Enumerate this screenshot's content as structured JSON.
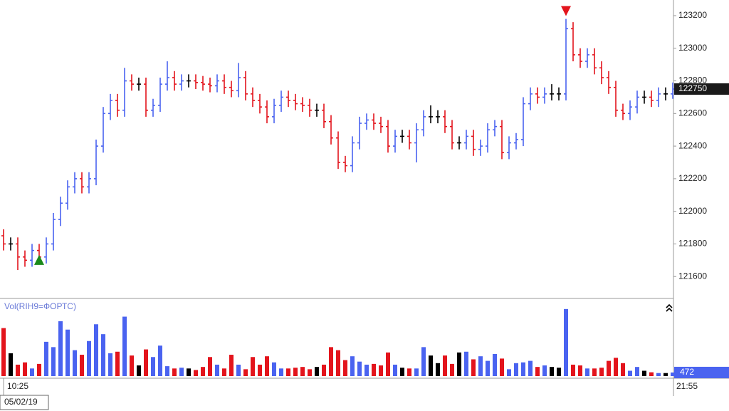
{
  "chart_data": {
    "type": "ohlc",
    "volume_title": "Vol(RIH9=ФОРТС)",
    "x_start": "10:25",
    "x_end": "21:55",
    "date": "05/02/19",
    "colors": {
      "up": "#4a63f0",
      "down": "#e3141c",
      "flat": "#000000",
      "buy": "#1a8a1a",
      "sell": "#e3141c"
    },
    "ylim": [
      121470,
      123296
    ],
    "yticks": [
      121600,
      121800,
      122000,
      122200,
      122400,
      122600,
      122800,
      123000,
      123200
    ],
    "volume_ylim": [
      0,
      10000
    ],
    "signals": [
      {
        "type": "buy",
        "index": 5
      },
      {
        "type": "sell",
        "index": 79
      }
    ],
    "open": [
      121850,
      121800,
      121800,
      121720,
      121700,
      121760,
      121720,
      121800,
      121950,
      122050,
      122150,
      122200,
      122150,
      122200,
      122400,
      122600,
      122680,
      122620,
      122800,
      122780,
      122780,
      122620,
      122650,
      122780,
      122820,
      122780,
      122800,
      122800,
      122790,
      122780,
      122770,
      122800,
      122760,
      122740,
      122820,
      122720,
      122680,
      122640,
      122580,
      122650,
      122700,
      122680,
      122660,
      122650,
      122620,
      122620,
      122550,
      122450,
      122300,
      122280,
      122420,
      122540,
      122560,
      122540,
      122520,
      122400,
      122460,
      122460,
      122420,
      122500,
      122580,
      122580,
      122580,
      122520,
      122420,
      122420,
      122460,
      122380,
      122400,
      122500,
      122520,
      122360,
      122420,
      122440,
      122660,
      122720,
      122700,
      122720,
      122720,
      122720,
      123120,
      122960,
      122920,
      122960,
      122880,
      122820,
      122760,
      122620,
      122600,
      122640,
      122700,
      122700,
      122680,
      122720,
      122720
    ],
    "high": [
      121890,
      121840,
      121840,
      121760,
      121800,
      121800,
      121840,
      121990,
      122090,
      122190,
      122240,
      122240,
      122240,
      122440,
      122640,
      122720,
      122720,
      122880,
      122840,
      122820,
      122820,
      122690,
      122820,
      122920,
      122860,
      122840,
      122840,
      122840,
      122830,
      122820,
      122840,
      122840,
      122800,
      122910,
      122860,
      122760,
      122720,
      122680,
      122690,
      122740,
      122740,
      122720,
      122700,
      122690,
      122660,
      122660,
      122590,
      122490,
      122340,
      122460,
      122580,
      122600,
      122600,
      122580,
      122560,
      122500,
      122500,
      122500,
      122540,
      122620,
      122650,
      122620,
      122620,
      122560,
      122460,
      122500,
      122500,
      122440,
      122540,
      122560,
      122560,
      122460,
      122480,
      122700,
      122760,
      122760,
      122760,
      122780,
      122760,
      123180,
      123160,
      123000,
      123000,
      123000,
      122920,
      122860,
      122800,
      122660,
      122680,
      122740,
      122740,
      122740,
      122760,
      122760,
      122790
    ],
    "low": [
      121760,
      121760,
      121640,
      121660,
      121660,
      121680,
      121680,
      121760,
      121910,
      122010,
      122110,
      122110,
      122110,
      122160,
      122360,
      122560,
      122580,
      122580,
      122740,
      122740,
      122580,
      122580,
      122610,
      122740,
      122740,
      122740,
      122760,
      122750,
      122740,
      122730,
      122730,
      122720,
      122700,
      122700,
      122680,
      122640,
      122600,
      122540,
      122540,
      122610,
      122640,
      122620,
      122610,
      122580,
      122580,
      122510,
      122410,
      122260,
      122240,
      122240,
      122380,
      122500,
      122500,
      122480,
      122360,
      122360,
      122420,
      122380,
      122300,
      122460,
      122540,
      122540,
      122480,
      122380,
      122380,
      122380,
      122340,
      122340,
      122360,
      122460,
      122320,
      122320,
      122380,
      122400,
      122620,
      122660,
      122660,
      122680,
      122680,
      122680,
      122920,
      122880,
      122880,
      122840,
      122780,
      122720,
      122580,
      122560,
      122560,
      122600,
      122660,
      122640,
      122640,
      122680,
      122690
    ],
    "close": [
      121800,
      121800,
      121720,
      121700,
      121760,
      121720,
      121800,
      121950,
      122050,
      122150,
      122200,
      122150,
      122200,
      122400,
      122600,
      122680,
      122620,
      122800,
      122780,
      122780,
      122620,
      122650,
      122780,
      122820,
      122780,
      122800,
      122800,
      122790,
      122780,
      122770,
      122800,
      122760,
      122740,
      122820,
      122720,
      122680,
      122640,
      122580,
      122650,
      122700,
      122680,
      122660,
      122650,
      122620,
      122620,
      122550,
      122450,
      122300,
      122280,
      122420,
      122540,
      122560,
      122540,
      122520,
      122400,
      122460,
      122460,
      122420,
      122500,
      122580,
      122580,
      122580,
      122520,
      122420,
      122420,
      122460,
      122380,
      122400,
      122500,
      122520,
      122360,
      122420,
      122440,
      122660,
      122720,
      122700,
      122720,
      122720,
      122720,
      123120,
      122960,
      122920,
      122960,
      122880,
      122820,
      122760,
      122620,
      122600,
      122640,
      122700,
      122700,
      122680,
      122720,
      122720,
      122750
    ],
    "volume": [
      6300,
      3000,
      1500,
      1800,
      1000,
      1600,
      4500,
      3800,
      7200,
      6100,
      3400,
      2800,
      4600,
      6800,
      5500,
      3000,
      3200,
      7800,
      2700,
      1400,
      3500,
      2500,
      4000,
      1300,
      1000,
      1100,
      1000,
      800,
      1200,
      2500,
      1500,
      1000,
      2800,
      1500,
      900,
      2500,
      1500,
      2600,
      1800,
      1000,
      1000,
      1100,
      1200,
      900,
      1200,
      1500,
      3800,
      3400,
      2100,
      2600,
      1900,
      1500,
      1600,
      1400,
      3100,
      1500,
      1100,
      1000,
      1000,
      3800,
      2700,
      1700,
      2700,
      1600,
      3100,
      3200,
      2200,
      2600,
      2000,
      2900,
      2300,
      900,
      1700,
      1800,
      2000,
      1200,
      1400,
      1200,
      1100,
      8800,
      1500,
      1400,
      1000,
      1000,
      1100,
      2000,
      2400,
      1700,
      700,
      1200,
      700,
      500,
      400,
      400,
      472
    ]
  }
}
